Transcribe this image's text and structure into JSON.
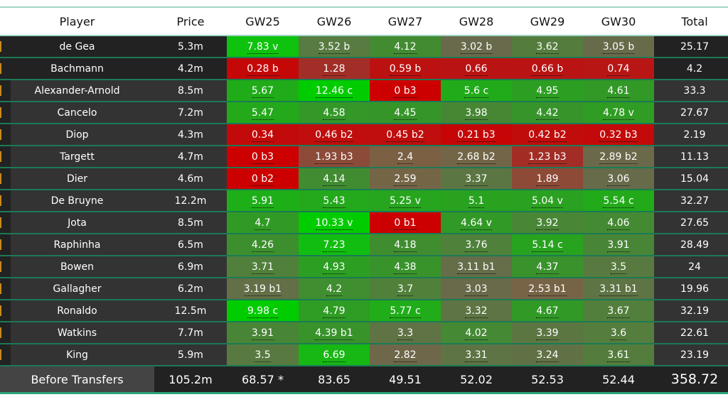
{
  "headers": [
    "Player",
    "Price",
    "GW25",
    "GW26",
    "GW27",
    "GW28",
    "GW29",
    "GW30",
    "Total"
  ],
  "rows": [
    {
      "player": "de Gea",
      "price": "5.3m",
      "gw": [
        "7.83 v",
        "3.52 b",
        "4.12",
        "3.02 b",
        "3.62",
        "3.05 b"
      ],
      "total": "25.17",
      "gk": true
    },
    {
      "player": "Bachmann",
      "price": "4.2m",
      "gw": [
        "0.28 b",
        "1.28",
        "0.59 b",
        "0.66",
        "0.66 b",
        "0.74"
      ],
      "total": "4.2",
      "gk": true
    },
    {
      "player": "Alexander-Arnold",
      "price": "8.5m",
      "gw": [
        "5.67",
        "12.46 c",
        "0 b3",
        "5.6 c",
        "4.95",
        "4.61"
      ],
      "total": "33.3"
    },
    {
      "player": "Cancelo",
      "price": "7.2m",
      "gw": [
        "5.47",
        "4.58",
        "4.45",
        "3.98",
        "4.42",
        "4.78 v"
      ],
      "total": "27.67"
    },
    {
      "player": "Diop",
      "price": "4.3m",
      "gw": [
        "0.34",
        "0.46 b2",
        "0.45 b2",
        "0.21 b3",
        "0.42 b2",
        "0.32 b3"
      ],
      "total": "2.19"
    },
    {
      "player": "Targett",
      "price": "4.7m",
      "gw": [
        "0 b3",
        "1.93 b3",
        "2.4",
        "2.68 b2",
        "1.23 b3",
        "2.89 b2"
      ],
      "total": "11.13"
    },
    {
      "player": "Dier",
      "price": "4.6m",
      "gw": [
        "0 b2",
        "4.14",
        "2.59",
        "3.37",
        "1.89",
        "3.06"
      ],
      "total": "15.04"
    },
    {
      "player": "De Bruyne",
      "price": "12.2m",
      "gw": [
        "5.91",
        "5.43",
        "5.25 v",
        "5.1",
        "5.04 v",
        "5.54 c"
      ],
      "total": "32.27"
    },
    {
      "player": "Jota",
      "price": "8.5m",
      "gw": [
        "4.7",
        "10.33 v",
        "0 b1",
        "4.64 v",
        "3.92",
        "4.06"
      ],
      "total": "27.65"
    },
    {
      "player": "Raphinha",
      "price": "6.5m",
      "gw": [
        "4.26",
        "7.23",
        "4.18",
        "3.76",
        "5.14 c",
        "3.91"
      ],
      "total": "28.49"
    },
    {
      "player": "Bowen",
      "price": "6.9m",
      "gw": [
        "3.71",
        "4.93",
        "4.38",
        "3.11 b1",
        "4.37",
        "3.5"
      ],
      "total": "24"
    },
    {
      "player": "Gallagher",
      "price": "6.2m",
      "gw": [
        "3.19 b1",
        "4.2",
        "3.7",
        "3.03",
        "2.53 b1",
        "3.31 b1"
      ],
      "total": "19.96"
    },
    {
      "player": "Ronaldo",
      "price": "12.5m",
      "gw": [
        "9.98 c",
        "4.79",
        "5.77 c",
        "3.32",
        "4.67",
        "3.67"
      ],
      "total": "32.19"
    },
    {
      "player": "Watkins",
      "price": "7.7m",
      "gw": [
        "3.91",
        "4.39 b1",
        "3.3",
        "4.02",
        "3.39",
        "3.6"
      ],
      "total": "22.61"
    },
    {
      "player": "King",
      "price": "5.9m",
      "gw": [
        "3.5",
        "6.69",
        "2.82",
        "3.31",
        "3.24",
        "3.61"
      ],
      "total": "23.19"
    }
  ],
  "footer": {
    "label": "Before Transfers",
    "price": "105.2m",
    "gw": [
      "68.57 *",
      "83.65",
      "49.51",
      "52.02",
      "52.53",
      "52.44"
    ],
    "total": "358.72"
  },
  "colors": {
    "low": "#cc0000",
    "mid": "#6a6a4a",
    "high": "#00cc00",
    "row_border": "#1b7a55"
  }
}
